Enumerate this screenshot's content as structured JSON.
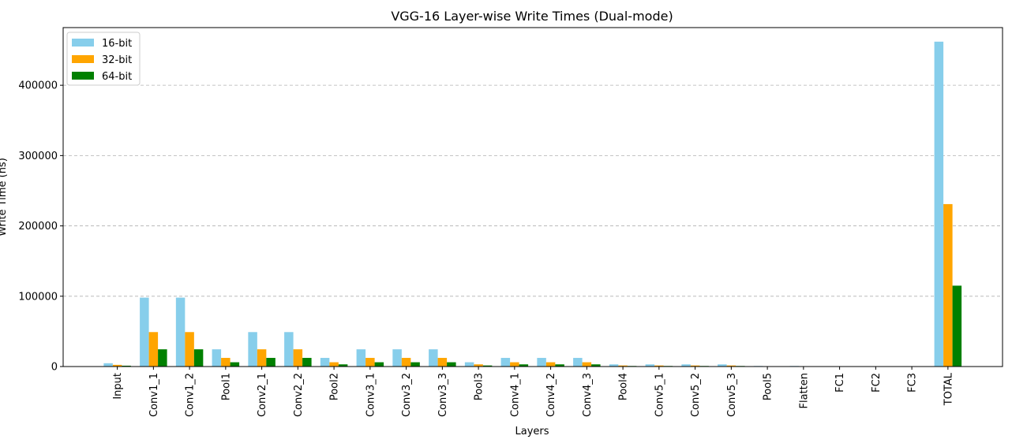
{
  "chart_data": {
    "type": "bar",
    "title": "VGG-16 Layer-wise Write Times (Dual-mode)",
    "xlabel": "Layers",
    "ylabel": "Write Time (ns)",
    "ylim": [
      0,
      482000
    ],
    "yticks": [
      0,
      100000,
      200000,
      300000,
      400000
    ],
    "grid": "horizontal-dashed",
    "legend_position": "top-left",
    "categories": [
      "Input",
      "Conv1_1",
      "Conv1_2",
      "Pool1",
      "Conv2_1",
      "Conv2_2",
      "Pool2",
      "Conv3_1",
      "Conv3_2",
      "Conv3_3",
      "Pool3",
      "Conv4_1",
      "Conv4_2",
      "Conv4_3",
      "Pool4",
      "Conv5_1",
      "Conv5_2",
      "Conv5_3",
      "Pool5",
      "Flatten",
      "FC1",
      "FC2",
      "FC3",
      "TOTAL"
    ],
    "series": [
      {
        "name": "16-bit",
        "color": "#87CEEB",
        "values": [
          4700,
          98000,
          98000,
          24500,
          49000,
          49000,
          12300,
          24500,
          24500,
          24500,
          6100,
          12300,
          12300,
          12300,
          3100,
          3100,
          3100,
          3100,
          800,
          800,
          150,
          150,
          40,
          462000
        ]
      },
      {
        "name": "32-bit",
        "color": "#FFA500",
        "values": [
          2400,
          49000,
          49000,
          12300,
          24500,
          24500,
          6100,
          12300,
          12300,
          12300,
          3100,
          6100,
          6100,
          6100,
          1500,
          1500,
          1500,
          1500,
          400,
          400,
          75,
          75,
          20,
          231000
        ]
      },
      {
        "name": "64-bit",
        "color": "#008000",
        "values": [
          1200,
          24500,
          24500,
          6100,
          12300,
          12300,
          3100,
          6100,
          6100,
          6100,
          1500,
          3100,
          3100,
          3100,
          800,
          800,
          800,
          800,
          200,
          200,
          40,
          40,
          10,
          115000
        ]
      }
    ]
  }
}
